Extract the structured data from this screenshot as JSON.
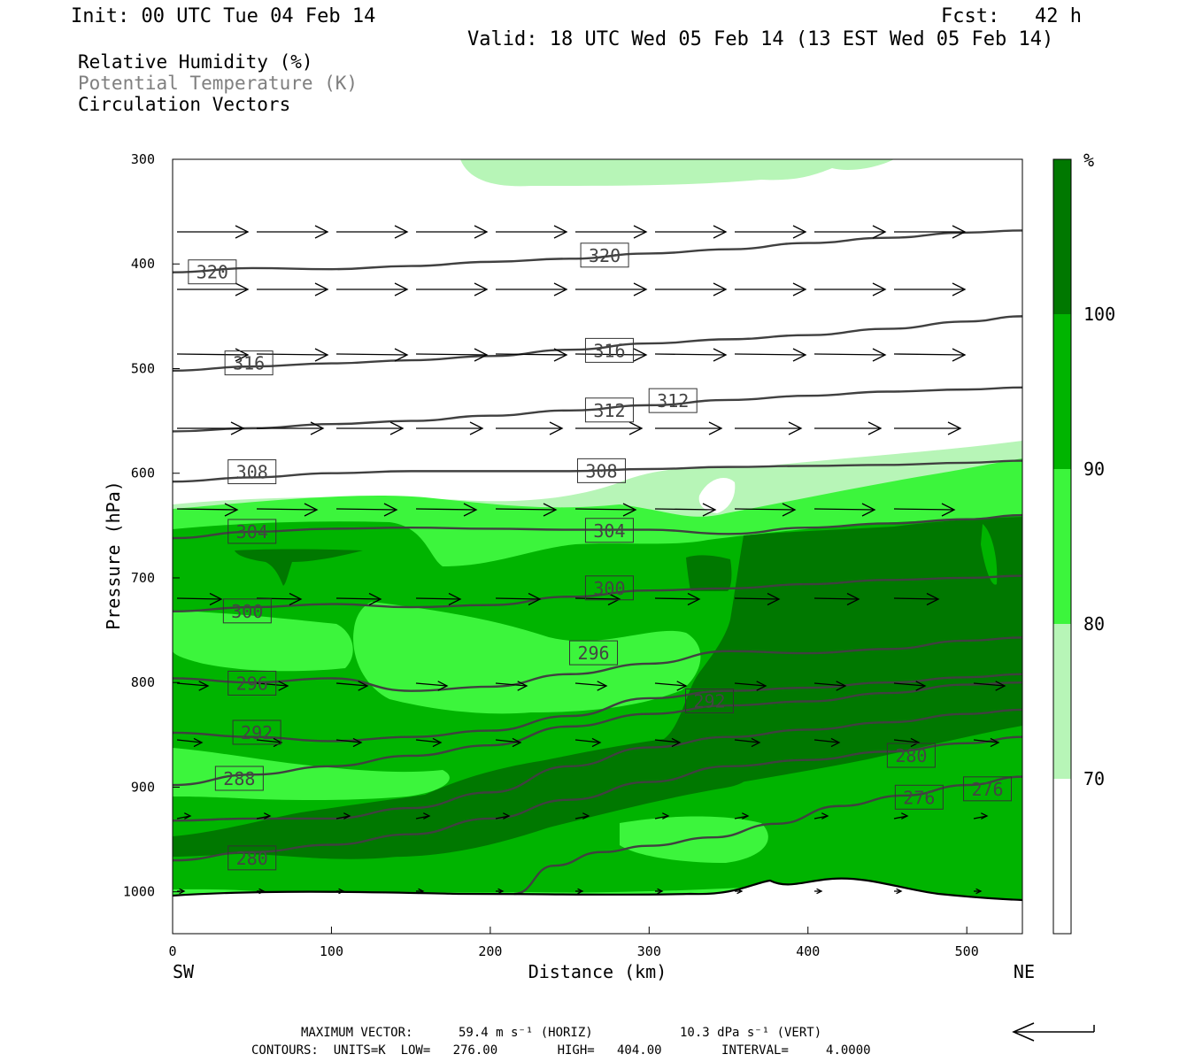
{
  "header": {
    "init": "Init: 00 UTC Tue 04 Feb 14",
    "fcst": "Fcst:   42 h",
    "valid": "Valid: 18 UTC Wed 05 Feb 14 (13 EST Wed 05 Feb 14)"
  },
  "legend": {
    "line1": "Relative Humidity (%)",
    "line2": "Potential Temperature (K)",
    "line3": "Circulation Vectors"
  },
  "colors": {
    "white": "#ffffff",
    "rh70": "#b7f5b7",
    "rh80": "#3cf53c",
    "rh90": "#00b400",
    "rh100": "#007800",
    "contour": "#404040"
  },
  "chart_data": {
    "type": "cross-section",
    "xlabel": "Distance (km)",
    "ylabel": "Pressure (hPa)",
    "xlim": [
      0,
      535
    ],
    "ylim": [
      1040,
      300
    ],
    "x_ticks": [
      0,
      100,
      200,
      300,
      400,
      500
    ],
    "y_ticks": [
      300,
      400,
      500,
      600,
      700,
      800,
      900,
      1000
    ],
    "x_end_labels": {
      "left": "SW",
      "right": "NE"
    },
    "colorbar": {
      "unit": "%",
      "levels": [
        70,
        80,
        90,
        100
      ]
    },
    "theta_contours": [
      {
        "label": "320",
        "x": [
          0,
          50,
          100,
          150,
          200,
          250,
          300,
          350,
          400,
          450,
          500,
          535
        ],
        "p": [
          408,
          404,
          405,
          402,
          398,
          395,
          390,
          386,
          380,
          375,
          370,
          368
        ],
        "labels_at": [
          [
            25,
            408
          ],
          [
            272,
            392
          ]
        ]
      },
      {
        "label": "316",
        "x": [
          0,
          50,
          100,
          150,
          200,
          250,
          300,
          350,
          400,
          450,
          500,
          535
        ],
        "p": [
          502,
          498,
          495,
          492,
          488,
          482,
          476,
          472,
          468,
          462,
          455,
          450
        ],
        "labels_at": [
          [
            48,
            495
          ],
          [
            275,
            483
          ]
        ]
      },
      {
        "label": "312",
        "x": [
          0,
          50,
          100,
          150,
          200,
          250,
          300,
          350,
          400,
          450,
          500,
          535
        ],
        "p": [
          560,
          557,
          553,
          550,
          545,
          540,
          535,
          530,
          526,
          522,
          520,
          518
        ],
        "labels_at": [
          [
            275,
            540
          ],
          [
            315,
            531
          ]
        ]
      },
      {
        "label": "308",
        "x": [
          0,
          50,
          100,
          150,
          200,
          250,
          300,
          350,
          400,
          450,
          500,
          535
        ],
        "p": [
          608,
          604,
          600,
          598,
          598,
          598,
          596,
          594,
          593,
          592,
          590,
          588
        ],
        "labels_at": [
          [
            50,
            599
          ],
          [
            270,
            598
          ]
        ]
      },
      {
        "label": "304",
        "x": [
          0,
          50,
          100,
          150,
          200,
          250,
          300,
          350,
          400,
          450,
          500,
          535
        ],
        "p": [
          662,
          656,
          653,
          652,
          653,
          654,
          654,
          658,
          652,
          648,
          644,
          640
        ],
        "labels_at": [
          [
            50,
            656
          ],
          [
            275,
            655
          ]
        ]
      },
      {
        "label": "300",
        "x": [
          0,
          50,
          100,
          150,
          200,
          250,
          300,
          350,
          400,
          450,
          500,
          535
        ],
        "p": [
          732,
          728,
          725,
          728,
          726,
          718,
          712,
          710,
          706,
          702,
          700,
          698
        ],
        "labels_at": [
          [
            47,
            732
          ],
          [
            275,
            710
          ]
        ]
      },
      {
        "label": "296",
        "x": [
          0,
          50,
          100,
          150,
          200,
          250,
          300,
          350,
          400,
          450,
          500,
          535
        ],
        "p": [
          796,
          800,
          796,
          808,
          804,
          792,
          782,
          770,
          772,
          768,
          760,
          757
        ],
        "labels_at": [
          [
            50,
            801
          ],
          [
            265,
            772
          ]
        ]
      },
      {
        "label": "292",
        "x": [
          0,
          50,
          100,
          150,
          200,
          250,
          300,
          350,
          400,
          450,
          500,
          535
        ],
        "p": [
          848,
          852,
          856,
          852,
          846,
          832,
          815,
          808,
          805,
          800,
          795,
          792
        ],
        "labels_at": [
          [
            53,
            848
          ],
          [
            338,
            818
          ]
        ]
      },
      {
        "label": "288",
        "x": [
          0,
          50,
          100,
          150,
          200,
          250,
          300,
          350,
          400,
          450,
          500,
          535
        ],
        "p": [
          898,
          888,
          880,
          870,
          860,
          842,
          830,
          822,
          818,
          810,
          802,
          800
        ],
        "labels_at": [
          [
            42,
            892
          ]
        ]
      },
      {
        "label": "284",
        "x": [
          0,
          50,
          100,
          150,
          200,
          250,
          300,
          350,
          400,
          450,
          500,
          535
        ],
        "p": [
          932,
          930,
          930,
          920,
          905,
          880,
          862,
          852,
          845,
          838,
          830,
          826
        ]
      },
      {
        "label": "280",
        "x": [
          0,
          50,
          100,
          150,
          200,
          250,
          300,
          350,
          400,
          450,
          500,
          535
        ],
        "p": [
          970,
          962,
          955,
          945,
          930,
          912,
          895,
          880,
          874,
          866,
          858,
          852
        ],
        "labels_at": [
          [
            50,
            968
          ],
          [
            465,
            870
          ]
        ]
      },
      {
        "label": "276",
        "x": [
          215,
          240,
          270,
          300,
          340,
          380,
          420,
          460,
          500,
          535
        ],
        "p": [
          1002,
          975,
          962,
          956,
          948,
          935,
          918,
          908,
          898,
          890
        ],
        "labels_at": [
          [
            470,
            910
          ],
          [
            513,
            902
          ]
        ]
      }
    ]
  },
  "footer": {
    "max_vector_label": "MAXIMUM VECTOR:",
    "max_vector_horiz": "59.4 m s⁻¹ (HORIZ)",
    "max_vector_vert": "10.3 dPa s⁻¹ (VERT)",
    "contours": "CONTOURS:  UNITS=K  LOW=   276.00        HIGH=   404.00        INTERVAL=     4.0000"
  }
}
